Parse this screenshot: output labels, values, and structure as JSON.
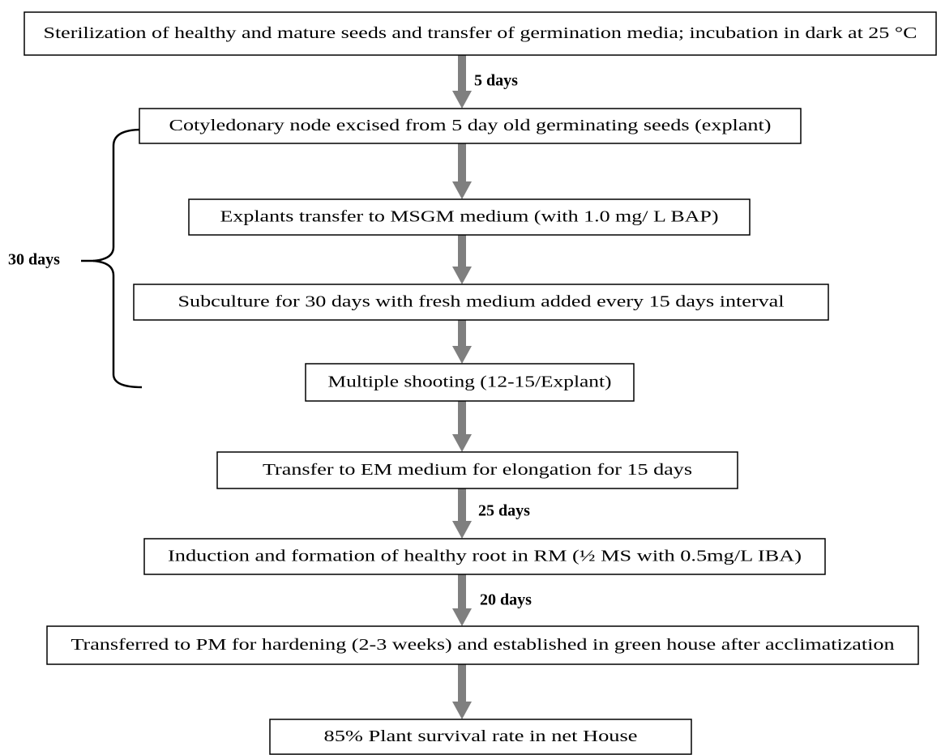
{
  "nodes": [
    {
      "label": "Sterilization  of healthy and mature seeds and transfer of germination media; incubation in dark at 25 °C"
    },
    {
      "label": "Cotyledonary node excised from 5 day old germinating seeds (explant)"
    },
    {
      "label": "Explants transfer to MSGM medium (with 1.0 mg/ L BAP)"
    },
    {
      "label": "Subculture for 30 days with fresh medium added every 15 days interval"
    },
    {
      "label": "Multiple  shooting (12-15/Explant)"
    },
    {
      "label": "Transfer to EM medium for elongation for 15 days"
    },
    {
      "label": "Induction and formation of healthy root in RM (½ MS with 0.5mg/L IBA)"
    },
    {
      "label": "Transferred to PM for hardening (2-3 weeks) and established in green house after acclimatization"
    },
    {
      "label": "85% Plant survival rate in net House"
    }
  ],
  "arrow_labels": [
    "5 days",
    "25 days",
    "20 days"
  ],
  "bracket_label": "30 days"
}
